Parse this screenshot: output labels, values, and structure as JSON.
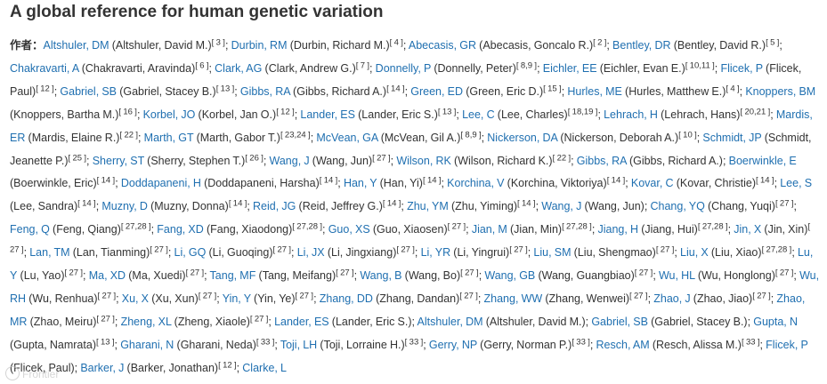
{
  "title": "A global reference for human genetic variation",
  "authors_label": "作者：",
  "watermark": "Frontier",
  "authors": [
    {
      "short": "Altshuler, DM",
      "full": "Altshuler, David M.",
      "refs": "3"
    },
    {
      "short": "Durbin, RM",
      "full": "Durbin, Richard M.",
      "refs": "4"
    },
    {
      "short": "Abecasis, GR",
      "full": "Abecasis, Goncalo R.",
      "refs": "2"
    },
    {
      "short": "Bentley, DR",
      "full": "Bentley, David R.",
      "refs": "5"
    },
    {
      "short": "Chakravarti, A",
      "full": "Chakravarti, Aravinda",
      "refs": "6"
    },
    {
      "short": "Clark, AG",
      "full": "Clark, Andrew G.",
      "refs": "7"
    },
    {
      "short": "Donnelly, P",
      "full": "Donnelly, Peter",
      "refs": "8,9"
    },
    {
      "short": "Eichler, EE",
      "full": "Eichler, Evan E.",
      "refs": "10,11"
    },
    {
      "short": "Flicek, P",
      "full": "Flicek, Paul",
      "refs": "12"
    },
    {
      "short": "Gabriel, SB",
      "full": "Gabriel, Stacey B.",
      "refs": "13"
    },
    {
      "short": "Gibbs, RA",
      "full": "Gibbs, Richard A.",
      "refs": "14"
    },
    {
      "short": "Green, ED",
      "full": "Green, Eric D.",
      "refs": "15"
    },
    {
      "short": "Hurles, ME",
      "full": "Hurles, Matthew E.",
      "refs": "4"
    },
    {
      "short": "Knoppers, BM",
      "full": "Knoppers, Bartha M.",
      "refs": "16"
    },
    {
      "short": "Korbel, JO",
      "full": "Korbel, Jan O.",
      "refs": "12"
    },
    {
      "short": "Lander, ES",
      "full": "Lander, Eric S.",
      "refs": "13"
    },
    {
      "short": "Lee, C",
      "full": "Lee, Charles",
      "refs": "18,19"
    },
    {
      "short": "Lehrach, H",
      "full": "Lehrach, Hans",
      "refs": "20,21"
    },
    {
      "short": "Mardis, ER",
      "full": "Mardis, Elaine R.",
      "refs": "22"
    },
    {
      "short": "Marth, GT",
      "full": "Marth, Gabor T.",
      "refs": "23,24"
    },
    {
      "short": "McVean, GA",
      "full": "McVean, Gil A.",
      "refs": "8,9"
    },
    {
      "short": "Nickerson, DA",
      "full": "Nickerson, Deborah A.",
      "refs": "10"
    },
    {
      "short": "Schmidt, JP",
      "full": "Schmidt, Jeanette P.",
      "refs": "25"
    },
    {
      "short": "Sherry, ST",
      "full": "Sherry, Stephen T.",
      "refs": "26"
    },
    {
      "short": "Wang, J",
      "full": "Wang, Jun",
      "refs": "27"
    },
    {
      "short": "Wilson, RK",
      "full": "Wilson, Richard K.",
      "refs": "22"
    },
    {
      "short": "Gibbs, RA",
      "full": "Gibbs, Richard A.",
      "refs": ""
    },
    {
      "short": "Boerwinkle, E",
      "full": "Boerwinkle, Eric",
      "refs": "14"
    },
    {
      "short": "Doddapaneni, H",
      "full": "Doddapaneni, Harsha",
      "refs": "14"
    },
    {
      "short": "Han, Y",
      "full": "Han, Yi",
      "refs": "14"
    },
    {
      "short": "Korchina, V",
      "full": "Korchina, Viktoriya",
      "refs": "14"
    },
    {
      "short": "Kovar, C",
      "full": "Kovar, Christie",
      "refs": "14"
    },
    {
      "short": "Lee, S",
      "full": "Lee, Sandra",
      "refs": "14"
    },
    {
      "short": "Muzny, D",
      "full": "Muzny, Donna",
      "refs": "14"
    },
    {
      "short": "Reid, JG",
      "full": "Reid, Jeffrey G.",
      "refs": "14"
    },
    {
      "short": "Zhu, YM",
      "full": "Zhu, Yiming",
      "refs": "14"
    },
    {
      "short": "Wang, J",
      "full": "Wang, Jun",
      "refs": ""
    },
    {
      "short": "Chang, YQ",
      "full": "Chang, Yuqi",
      "refs": "27"
    },
    {
      "short": "Feng, Q",
      "full": "Feng, Qiang",
      "refs": "27,28"
    },
    {
      "short": "Fang, XD",
      "full": "Fang, Xiaodong",
      "refs": "27,28"
    },
    {
      "short": "Guo, XS",
      "full": "Guo, Xiaosen",
      "refs": "27"
    },
    {
      "short": "Jian, M",
      "full": "Jian, Min",
      "refs": "27,28"
    },
    {
      "short": "Jiang, H",
      "full": "Jiang, Hui",
      "refs": "27,28"
    },
    {
      "short": "Jin, X",
      "full": "Jin, Xin",
      "refs": "27"
    },
    {
      "short": "Lan, TM",
      "full": "Lan, Tianming",
      "refs": "27"
    },
    {
      "short": "Li, GQ",
      "full": "Li, Guoqing",
      "refs": "27"
    },
    {
      "short": "Li, JX",
      "full": "Li, Jingxiang",
      "refs": "27"
    },
    {
      "short": "Li, YR",
      "full": "Li, Yingrui",
      "refs": "27"
    },
    {
      "short": "Liu, SM",
      "full": "Liu, Shengmao",
      "refs": "27"
    },
    {
      "short": "Liu, X",
      "full": "Liu, Xiao",
      "refs": "27,28"
    },
    {
      "short": "Lu, Y",
      "full": "Lu, Yao",
      "refs": "27"
    },
    {
      "short": "Ma, XD",
      "full": "Ma, Xuedi",
      "refs": "27"
    },
    {
      "short": "Tang, MF",
      "full": "Tang, Meifang",
      "refs": "27"
    },
    {
      "short": "Wang, B",
      "full": "Wang, Bo",
      "refs": "27"
    },
    {
      "short": "Wang, GB",
      "full": "Wang, Guangbiao",
      "refs": "27"
    },
    {
      "short": "Wu, HL",
      "full": "Wu, Honglong",
      "refs": "27"
    },
    {
      "short": "Wu, RH",
      "full": "Wu, Renhua",
      "refs": "27"
    },
    {
      "short": "Xu, X",
      "full": "Xu, Xun",
      "refs": "27"
    },
    {
      "short": "Yin, Y",
      "full": "Yin, Ye",
      "refs": "27"
    },
    {
      "short": "Zhang, DD",
      "full": "Zhang, Dandan",
      "refs": "27"
    },
    {
      "short": "Zhang, WW",
      "full": "Zhang, Wenwei",
      "refs": "27"
    },
    {
      "short": "Zhao, J",
      "full": "Zhao, Jiao",
      "refs": "27"
    },
    {
      "short": "Zhao, MR",
      "full": "Zhao, Meiru",
      "refs": "27"
    },
    {
      "short": "Zheng, XL",
      "full": "Zheng, Xiaole",
      "refs": "27"
    },
    {
      "short": "Lander, ES",
      "full": "Lander, Eric S.",
      "refs": ""
    },
    {
      "short": "Altshuler, DM",
      "full": "Altshuler, David M.",
      "refs": ""
    },
    {
      "short": "Gabriel, SB",
      "full": "Gabriel, Stacey B.",
      "refs": ""
    },
    {
      "short": "Gupta, N",
      "full": "Gupta, Namrata",
      "refs": "13"
    },
    {
      "short": "Gharani, N",
      "full": "Gharani, Neda",
      "refs": "33"
    },
    {
      "short": "Toji, LH",
      "full": "Toji, Lorraine H.",
      "refs": "33"
    },
    {
      "short": "Gerry, NP",
      "full": "Gerry, Norman P.",
      "refs": "33"
    },
    {
      "short": "Resch, AM",
      "full": "Resch, Alissa M.",
      "refs": "33"
    },
    {
      "short": "Flicek, P",
      "full": "Flicek, Paul",
      "refs": ""
    },
    {
      "short": "Barker, J",
      "full": "Barker, Jonathan",
      "refs": "12"
    },
    {
      "short": "Clarke, L",
      "full": "",
      "refs": ""
    }
  ]
}
